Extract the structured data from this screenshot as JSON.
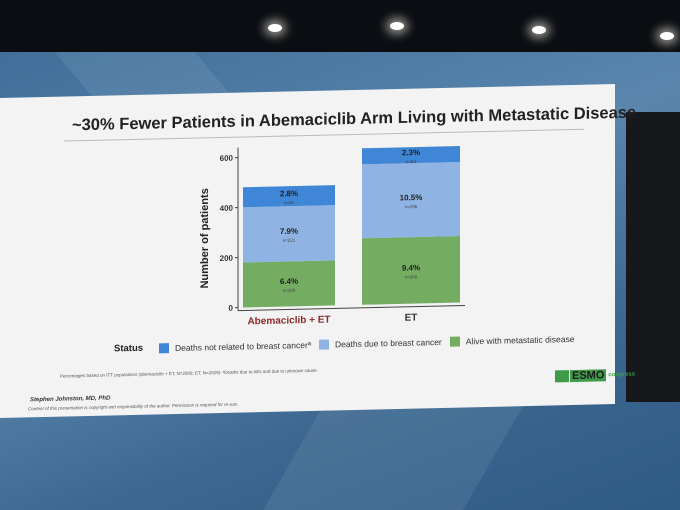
{
  "slide": {
    "title": "~30% Fewer Patients in Abemaciclib Arm Living with Metastatic Disease",
    "footnote": "Percentages based on ITT populations (abemaciclib + ET, N=2808; ET, N=2829). ªDeaths due to AEs and due to unknown cause.",
    "author": "Stephen Johnston, MD, PhD",
    "copyright": "Content of this presentation is copyright and responsibility of the author. Permission is required for re-use.",
    "logo_text": "ESMO",
    "logo_sub": "congress"
  },
  "colors": {
    "not_related": "#3f86d6",
    "due_to_bc": "#8fb3e3",
    "alive": "#74ad62"
  },
  "chart_data": {
    "type": "bar",
    "stacked": true,
    "title": "~30% Fewer Patients in Abemaciclib Arm Living with Metastatic Disease",
    "xlabel": "",
    "ylabel": "Number of patients",
    "ylim": [
      0,
      650
    ],
    "yticks": [
      "0",
      "200",
      "400",
      "600"
    ],
    "ytick_values": [
      0,
      200,
      400,
      600
    ],
    "categories": [
      "Abemaciclib + ET",
      "ET"
    ],
    "legend_title": "Status",
    "legend_position": "bottom",
    "series": [
      {
        "name": "Alive with metastatic disease",
        "key": "alive",
        "values": [
          180,
          266
        ],
        "labels": [
          "6.4%",
          "9.4%"
        ],
        "n_labels": [
          "n=180",
          "n=266"
        ]
      },
      {
        "name": "Deaths due to breast cancer",
        "key": "due_to_bc",
        "values": [
          221,
          296
        ],
        "labels": [
          "7.9%",
          "10.5%"
        ],
        "n_labels": [
          "n=221",
          "n=296"
        ]
      },
      {
        "name": "Deaths not related to breast cancerª",
        "key": "not_related",
        "values": [
          80,
          64
        ],
        "labels": [
          "2.8%",
          "2.3%"
        ],
        "n_labels": [
          "n=80",
          "n=64"
        ]
      }
    ]
  }
}
